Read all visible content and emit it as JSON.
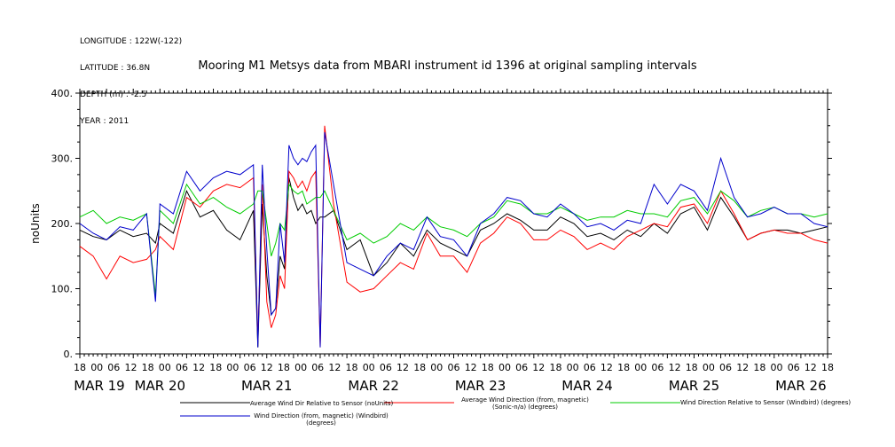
{
  "header": {
    "meta_lines": [
      "LONGITUDE : 122W(-122)",
      "LATITUDE : 36.8N",
      "DEPTH (m) : -2.5",
      "YEAR : 2011"
    ],
    "title": "Mooring M1 Metsys data from MBARI instrument id 1396 at original sampling intervals"
  },
  "chart_data": {
    "type": "line",
    "title": "Mooring M1 Metsys data from MBARI instrument id 1396 at original sampling intervals",
    "ylabel": "noUnits",
    "xlabel": "",
    "ylim": [
      0,
      400
    ],
    "yticks": [
      0,
      100,
      200,
      300,
      400
    ],
    "ytick_labels": [
      "0.",
      "100.",
      "200.",
      "300.",
      "400."
    ],
    "x_unit": "hours since MAR 19 18:00",
    "xlim": [
      0,
      168
    ],
    "xtick_labels": [
      "18",
      "00",
      "06",
      "12",
      "18",
      "00",
      "06",
      "12",
      "18",
      "00",
      "06",
      "12",
      "18",
      "00",
      "06",
      "12",
      "18",
      "00",
      "06",
      "12",
      "18",
      "00",
      "06",
      "12",
      "18",
      "00",
      "06",
      "12",
      "18",
      "00",
      "06",
      "12",
      "18",
      "00",
      "06",
      "12",
      "18",
      "00",
      "06",
      "12",
      "18",
      "00",
      "06",
      "12",
      "18"
    ],
    "date_labels": [
      {
        "label": "MAR 19",
        "hour": 0
      },
      {
        "label": "MAR 20",
        "hour": 18
      },
      {
        "label": "MAR 21",
        "hour": 42
      },
      {
        "label": "MAR 22",
        "hour": 66
      },
      {
        "label": "MAR 23",
        "hour": 90
      },
      {
        "label": "MAR 24",
        "hour": 114
      },
      {
        "label": "MAR 25",
        "hour": 138
      },
      {
        "label": "MAR 26",
        "hour": 162
      }
    ],
    "grid": false,
    "legend_position": "bottom",
    "series": [
      {
        "name": "Average Wind Dir Relative to Sensor (noUnits)",
        "color": "#000000",
        "x": [
          0,
          3,
          6,
          9,
          12,
          15,
          17,
          18,
          21,
          24,
          27,
          30,
          33,
          36,
          39,
          40,
          41,
          42,
          43,
          44,
          45,
          46,
          47,
          48,
          49,
          50,
          51,
          52,
          53,
          54,
          55,
          57,
          60,
          63,
          66,
          69,
          72,
          75,
          78,
          81,
          84,
          87,
          90,
          93,
          96,
          99,
          102,
          105,
          108,
          111,
          114,
          117,
          120,
          123,
          126,
          129,
          132,
          135,
          138,
          141,
          144,
          147,
          150,
          153,
          156,
          159,
          162,
          165,
          168
        ],
        "y": [
          190,
          180,
          175,
          190,
          180,
          185,
          170,
          200,
          185,
          250,
          210,
          220,
          190,
          175,
          220,
          10,
          230,
          120,
          60,
          70,
          150,
          130,
          270,
          240,
          220,
          230,
          215,
          220,
          200,
          210,
          210,
          220,
          160,
          175,
          120,
          140,
          170,
          150,
          190,
          170,
          160,
          150,
          190,
          200,
          215,
          205,
          190,
          190,
          210,
          200,
          180,
          185,
          175,
          190,
          180,
          200,
          185,
          215,
          225,
          190,
          240,
          210,
          175,
          185,
          190,
          190,
          185,
          190,
          195
        ]
      },
      {
        "name": "Average Wind Direction (from, magnetic) (Sonic-n/a) (degrees)",
        "color": "#ff0000",
        "x": [
          0,
          3,
          6,
          9,
          12,
          15,
          17,
          18,
          21,
          24,
          27,
          30,
          33,
          36,
          39,
          40,
          41,
          42,
          43,
          44,
          45,
          46,
          47,
          48,
          49,
          50,
          51,
          52,
          53,
          54,
          55,
          57,
          60,
          63,
          66,
          69,
          72,
          75,
          78,
          81,
          84,
          87,
          90,
          93,
          96,
          99,
          102,
          105,
          108,
          111,
          114,
          117,
          120,
          123,
          126,
          129,
          132,
          135,
          138,
          141,
          144,
          147,
          150,
          153,
          156,
          159,
          162,
          165,
          168
        ],
        "y": [
          165,
          150,
          115,
          150,
          140,
          145,
          160,
          180,
          160,
          240,
          225,
          250,
          260,
          255,
          270,
          20,
          260,
          80,
          40,
          60,
          120,
          100,
          280,
          270,
          255,
          265,
          250,
          270,
          280,
          10,
          350,
          230,
          110,
          95,
          100,
          120,
          140,
          130,
          185,
          150,
          150,
          125,
          170,
          185,
          210,
          200,
          175,
          175,
          190,
          180,
          160,
          170,
          160,
          180,
          190,
          200,
          195,
          225,
          230,
          200,
          250,
          215,
          175,
          185,
          190,
          185,
          185,
          175,
          170
        ]
      },
      {
        "name": "Wind Direction Relative to Sensor (Windbird) (degrees)",
        "color": "#00cc00",
        "x": [
          0,
          3,
          6,
          9,
          12,
          15,
          17,
          18,
          21,
          24,
          27,
          30,
          33,
          36,
          39,
          40,
          41,
          42,
          43,
          44,
          45,
          46,
          47,
          48,
          49,
          50,
          51,
          52,
          53,
          54,
          55,
          57,
          60,
          63,
          66,
          69,
          72,
          75,
          78,
          81,
          84,
          87,
          90,
          93,
          96,
          99,
          102,
          105,
          108,
          111,
          114,
          117,
          120,
          123,
          126,
          129,
          132,
          135,
          138,
          141,
          144,
          147,
          150,
          153,
          156,
          159,
          162,
          165,
          168
        ],
        "y": [
          210,
          220,
          200,
          210,
          205,
          215,
          90,
          220,
          200,
          260,
          230,
          240,
          225,
          215,
          230,
          250,
          250,
          200,
          150,
          170,
          200,
          190,
          260,
          250,
          245,
          250,
          230,
          235,
          240,
          240,
          250,
          220,
          175,
          185,
          170,
          180,
          200,
          190,
          210,
          195,
          190,
          180,
          200,
          210,
          235,
          230,
          215,
          215,
          225,
          215,
          205,
          210,
          210,
          220,
          215,
          215,
          210,
          235,
          240,
          215,
          250,
          235,
          210,
          220,
          225,
          215,
          215,
          210,
          215
        ]
      },
      {
        "name": "Wind Direction (from, magnetic) (Windbird) (degrees)",
        "color": "#0000cc",
        "x": [
          0,
          3,
          6,
          9,
          12,
          15,
          17,
          18,
          21,
          24,
          27,
          30,
          33,
          36,
          39,
          40,
          41,
          42,
          43,
          44,
          45,
          46,
          47,
          48,
          49,
          50,
          51,
          52,
          53,
          54,
          55,
          57,
          60,
          63,
          66,
          69,
          72,
          75,
          78,
          81,
          84,
          87,
          90,
          93,
          96,
          99,
          102,
          105,
          108,
          111,
          114,
          117,
          120,
          123,
          126,
          129,
          132,
          135,
          138,
          141,
          144,
          147,
          150,
          153,
          156,
          159,
          162,
          165,
          168
        ],
        "y": [
          200,
          185,
          175,
          195,
          190,
          215,
          80,
          230,
          215,
          280,
          250,
          270,
          280,
          275,
          290,
          10,
          290,
          160,
          60,
          70,
          200,
          140,
          320,
          300,
          290,
          300,
          295,
          310,
          320,
          10,
          340,
          260,
          140,
          130,
          120,
          150,
          170,
          160,
          210,
          180,
          175,
          150,
          200,
          215,
          240,
          235,
          215,
          210,
          230,
          215,
          195,
          200,
          190,
          205,
          200,
          260,
          230,
          260,
          250,
          220,
          300,
          240,
          210,
          215,
          225,
          215,
          215,
          200,
          195
        ]
      }
    ]
  }
}
